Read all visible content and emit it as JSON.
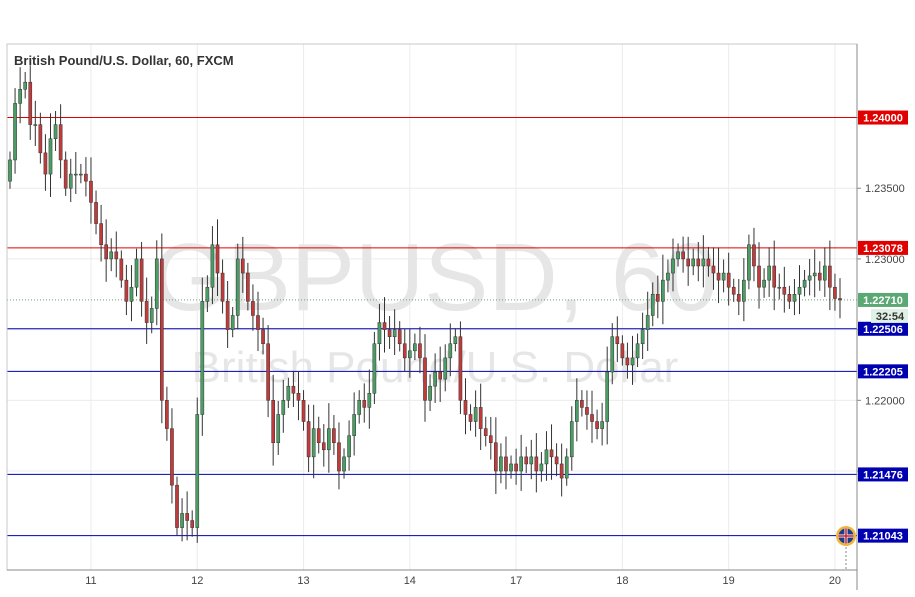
{
  "chart_data": {
    "type": "candlestick",
    "title": "British Pound/U.S. Dollar, 60, FXCM",
    "watermark_symbol": "GBPUSD, 60",
    "watermark_name": "British Pound/U.S. Dollar",
    "xlabel": "",
    "ylabel": "",
    "ylim": [
      1.208,
      1.2452
    ],
    "y_ticks": [
      "1.24000",
      "1.23500",
      "1.23000",
      "1.22500",
      "1.22000",
      "1.21500"
    ],
    "x_ticks": [
      {
        "label": "11",
        "index": 16
      },
      {
        "label": "12",
        "index": 37
      },
      {
        "label": "13",
        "index": 58
      },
      {
        "label": "14",
        "index": 79
      },
      {
        "label": "17",
        "index": 100
      },
      {
        "label": "18",
        "index": 121
      },
      {
        "label": "19",
        "index": 142
      },
      {
        "label": "20",
        "index": 163
      }
    ],
    "horizontal_levels": [
      {
        "label": "1.24000",
        "value": 1.24,
        "color": "#e00000"
      },
      {
        "label": "1.23078",
        "value": 1.23078,
        "color": "#e00000"
      },
      {
        "label": "1.22506",
        "value": 1.22506,
        "color": "#0000b0"
      },
      {
        "label": "1.22205",
        "value": 1.22205,
        "color": "#0000b0"
      },
      {
        "label": "1.21476",
        "value": 1.21476,
        "color": "#0000b0"
      },
      {
        "label": "1.21043",
        "value": 1.21043,
        "color": "#0000b0"
      }
    ],
    "current_price": {
      "label": "1.22710",
      "value": 1.2271,
      "countdown": "32:54",
      "color": "#5aa873"
    },
    "close_series": [
      1.237,
      1.241,
      1.242,
      1.2425,
      1.2395,
      1.2395,
      1.2375,
      1.236,
      1.2385,
      1.2395,
      1.237,
      1.235,
      1.236,
      1.236,
      1.236,
      1.2355,
      1.234,
      1.2325,
      1.231,
      1.23,
      1.2305,
      1.23,
      1.2285,
      1.227,
      1.228,
      1.23,
      1.227,
      1.2255,
      1.2265,
      1.23,
      1.22,
      1.218,
      1.214,
      1.211,
      1.212,
      1.2115,
      1.211,
      1.219,
      1.227,
      1.228,
      1.231,
      1.229,
      1.227,
      1.225,
      1.226,
      1.23,
      1.229,
      1.227,
      1.226,
      1.225,
      1.224,
      1.22,
      1.217,
      1.219,
      1.22,
      1.221,
      1.2205,
      1.22,
      1.2185,
      1.216,
      1.218,
      1.217,
      1.2165,
      1.218,
      1.217,
      1.215,
      1.216,
      1.2175,
      1.219,
      1.22,
      1.2195,
      1.2205,
      1.224,
      1.2255,
      1.225,
      1.2245,
      1.225,
      1.224,
      1.223,
      1.2235,
      1.224,
      1.223,
      1.22,
      1.221,
      1.222,
      1.2215,
      1.223,
      1.224,
      1.2245,
      1.22,
      1.219,
      1.2185,
      1.2195,
      1.218,
      1.2175,
      1.217,
      1.215,
      1.216,
      1.215,
      1.2155,
      1.215,
      1.216,
      1.2155,
      1.216,
      1.215,
      1.2155,
      1.2165,
      1.216,
      1.2155,
      1.2145,
      1.216,
      1.2185,
      1.22,
      1.2195,
      1.219,
      1.2185,
      1.218,
      1.2185,
      1.222,
      1.2245,
      1.224,
      1.223,
      1.2225,
      1.223,
      1.224,
      1.225,
      1.226,
      1.2275,
      1.227,
      1.2285,
      1.229,
      1.23,
      1.2305,
      1.23,
      1.2295,
      1.23,
      1.2295,
      1.23,
      1.2295,
      1.229,
      1.2285,
      1.229,
      1.228,
      1.2275,
      1.227,
      1.2285,
      1.231,
      1.2295,
      1.228,
      1.2285,
      1.2295,
      1.228,
      1.228,
      1.2275,
      1.227,
      1.2275,
      1.228,
      1.2285,
      1.2288,
      1.229,
      1.2285,
      1.2295,
      1.228,
      1.2272,
      1.2271
    ]
  }
}
